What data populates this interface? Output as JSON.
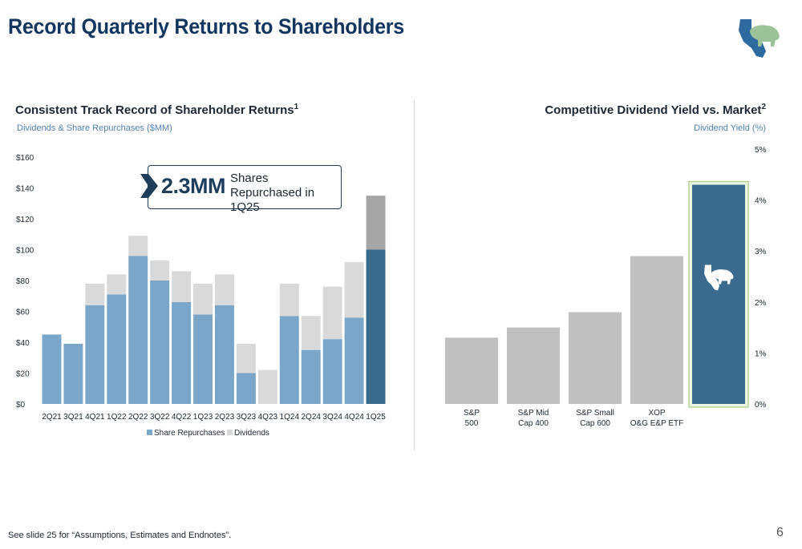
{
  "slide": {
    "title": "Record Quarterly Returns to Shareholders",
    "footnote": "See slide 25 for “Assumptions, Estimates and Endnotes”.",
    "page_number": "6",
    "logo_icon": "california-bear-logo-icon"
  },
  "callout": {
    "value": "2.3MM",
    "text": "Shares Repurchased in 1Q25"
  },
  "left_chart": {
    "title": "Consistent Track Record of Shareholder Returns",
    "title_sup": "1",
    "subtitle": "Dividends & Share Repurchases ($MM)"
  },
  "right_chart": {
    "title": "Competitive Dividend Yield vs. Market",
    "title_sup": "2",
    "subtitle": "Dividend Yield (%)"
  },
  "chart_data": [
    {
      "type": "bar",
      "stacked": true,
      "title": "Consistent Track Record of Shareholder Returns",
      "ylabel": "Dividends & Share Repurchases ($MM)",
      "categories": [
        "2Q21",
        "3Q21",
        "4Q21",
        "1Q22",
        "2Q22",
        "3Q22",
        "4Q22",
        "1Q23",
        "2Q23",
        "3Q23",
        "4Q23",
        "1Q24",
        "2Q24",
        "3Q24",
        "4Q24",
        "1Q25"
      ],
      "series": [
        {
          "name": "Share Repurchases",
          "values": [
            45,
            39,
            64,
            71,
            96,
            80,
            66,
            58,
            64,
            20,
            0,
            57,
            35,
            42,
            56,
            100
          ],
          "color": "#7aa6c9"
        },
        {
          "name": "Dividends",
          "values": [
            0,
            0,
            14,
            13,
            13,
            13,
            20,
            20,
            20,
            19,
            22,
            21,
            22,
            34,
            36,
            35
          ],
          "color": "#d9d9d9"
        }
      ],
      "highlight": {
        "category": "1Q25",
        "repurchase_color": "#3b6a8f",
        "dividend_color": "#a6a6a6"
      },
      "ylim": [
        0,
        160
      ],
      "yticks": [
        0,
        20,
        40,
        60,
        80,
        100,
        120,
        140,
        160
      ],
      "ytick_labels": [
        "$0",
        "$20",
        "$40",
        "$60",
        "$80",
        "$100",
        "$120",
        "$140",
        "$160"
      ],
      "legend": "bottom-center",
      "grid": false
    },
    {
      "type": "bar",
      "title": "Competitive Dividend Yield vs. Market",
      "ylabel": "Dividend Yield (%)",
      "categories": [
        [
          "S&P",
          "500"
        ],
        [
          "S&P Mid",
          "Cap 400"
        ],
        [
          "S&P Small",
          "Cap 600"
        ],
        [
          "XOP",
          "O&G E&P ETF"
        ],
        [
          "",
          ""
        ]
      ],
      "values": [
        1.3,
        1.5,
        1.8,
        2.9,
        4.3
      ],
      "colors": [
        "#c0c0c0",
        "#c0c0c0",
        "#c0c0c0",
        "#c0c0c0",
        "#3b6a8f"
      ],
      "highlight_index": 4,
      "highlight_icon": "california-bear-icon",
      "ylim": [
        0,
        5
      ],
      "yticks": [
        0,
        1,
        2,
        3,
        4,
        5
      ],
      "ytick_labels": [
        "0%",
        "1%",
        "2%",
        "3%",
        "4%",
        "5%"
      ],
      "yaxis_side": "right",
      "grid": false
    }
  ]
}
